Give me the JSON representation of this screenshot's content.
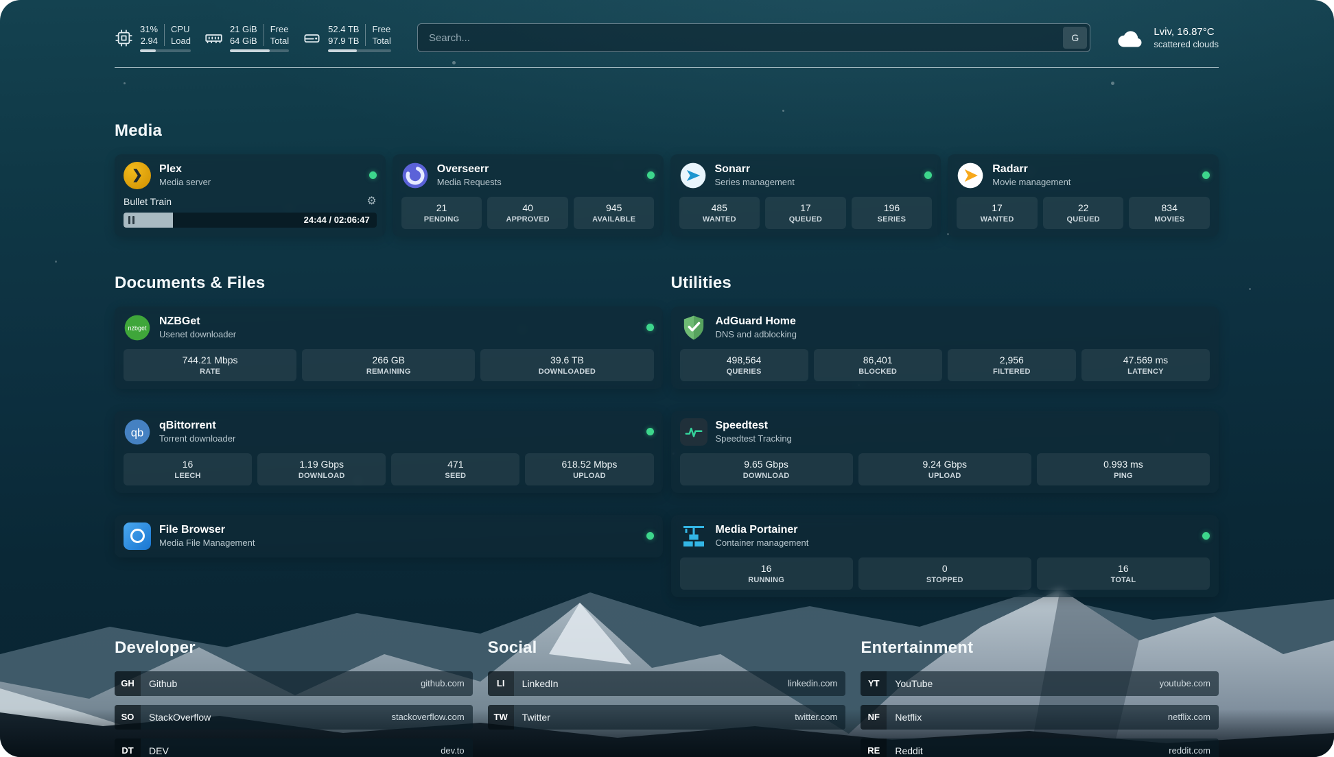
{
  "topbar": {
    "cpu": {
      "usage": "31%",
      "load": "2.94",
      "label_top": "CPU",
      "label_bottom": "Load",
      "bar_percent": 31
    },
    "memory": {
      "free": "21 GiB",
      "total": "64 GiB",
      "label_top": "Free",
      "label_bottom": "Total",
      "bar_percent": 67
    },
    "storage": {
      "free": "52.4 TB",
      "total": "97.9 TB",
      "label_top": "Free",
      "label_bottom": "Total",
      "bar_percent": 46
    },
    "search": {
      "placeholder": "Search...",
      "engine_button": "G"
    },
    "weather": {
      "location": "Lviv, 16.87°C",
      "condition": "scattered clouds"
    }
  },
  "sections": {
    "media": {
      "title": "Media",
      "plex": {
        "name": "Plex",
        "subtitle": "Media server",
        "now_playing": "Bullet Train",
        "elapsed": "24:44 / 02:06:47",
        "progress_percent": 19.5
      },
      "overseerr": {
        "name": "Overseerr",
        "subtitle": "Media Requests",
        "stats": [
          {
            "value": "21",
            "label": "PENDING"
          },
          {
            "value": "40",
            "label": "APPROVED"
          },
          {
            "value": "945",
            "label": "AVAILABLE"
          }
        ]
      },
      "sonarr": {
        "name": "Sonarr",
        "subtitle": "Series management",
        "stats": [
          {
            "value": "485",
            "label": "WANTED"
          },
          {
            "value": "17",
            "label": "QUEUED"
          },
          {
            "value": "196",
            "label": "SERIES"
          }
        ]
      },
      "radarr": {
        "name": "Radarr",
        "subtitle": "Movie management",
        "stats": [
          {
            "value": "17",
            "label": "WANTED"
          },
          {
            "value": "22",
            "label": "QUEUED"
          },
          {
            "value": "834",
            "label": "MOVIES"
          }
        ]
      }
    },
    "documents": {
      "title": "Documents & Files",
      "nzbget": {
        "name": "NZBGet",
        "subtitle": "Usenet downloader",
        "icon_text": "nzbget",
        "stats": [
          {
            "value": "744.21 Mbps",
            "label": "RATE"
          },
          {
            "value": "266 GB",
            "label": "REMAINING"
          },
          {
            "value": "39.6 TB",
            "label": "DOWNLOADED"
          }
        ]
      },
      "qbittorrent": {
        "name": "qBittorrent",
        "subtitle": "Torrent downloader",
        "icon_text": "qb",
        "stats": [
          {
            "value": "16",
            "label": "LEECH"
          },
          {
            "value": "1.19 Gbps",
            "label": "DOWNLOAD"
          },
          {
            "value": "471",
            "label": "SEED"
          },
          {
            "value": "618.52 Mbps",
            "label": "UPLOAD"
          }
        ]
      },
      "filebrowser": {
        "name": "File Browser",
        "subtitle": "Media File Management"
      }
    },
    "utilities": {
      "title": "Utilities",
      "adguard": {
        "name": "AdGuard Home",
        "subtitle": "DNS and adblocking",
        "stats": [
          {
            "value": "498,564",
            "label": "QUERIES"
          },
          {
            "value": "86,401",
            "label": "BLOCKED"
          },
          {
            "value": "2,956",
            "label": "FILTERED"
          },
          {
            "value": "47.569 ms",
            "label": "LATENCY"
          }
        ]
      },
      "speedtest": {
        "name": "Speedtest",
        "subtitle": "Speedtest Tracking",
        "stats": [
          {
            "value": "9.65 Gbps",
            "label": "DOWNLOAD"
          },
          {
            "value": "9.24 Gbps",
            "label": "UPLOAD"
          },
          {
            "value": "0.993 ms",
            "label": "PING"
          }
        ]
      },
      "portainer": {
        "name": "Media Portainer",
        "subtitle": "Container management",
        "stats": [
          {
            "value": "16",
            "label": "RUNNING"
          },
          {
            "value": "0",
            "label": "STOPPED"
          },
          {
            "value": "16",
            "label": "TOTAL"
          }
        ]
      }
    },
    "bookmarks": [
      {
        "title": "Developer",
        "items": [
          {
            "abbr": "GH",
            "name": "Github",
            "url": "github.com"
          },
          {
            "abbr": "SO",
            "name": "StackOverflow",
            "url": "stackoverflow.com"
          },
          {
            "abbr": "DT",
            "name": "DEV",
            "url": "dev.to"
          }
        ]
      },
      {
        "title": "Social",
        "items": [
          {
            "abbr": "LI",
            "name": "LinkedIn",
            "url": "linkedin.com"
          },
          {
            "abbr": "TW",
            "name": "Twitter",
            "url": "twitter.com"
          }
        ]
      },
      {
        "title": "Entertainment",
        "items": [
          {
            "abbr": "YT",
            "name": "YouTube",
            "url": "youtube.com"
          },
          {
            "abbr": "NF",
            "name": "Netflix",
            "url": "netflix.com"
          },
          {
            "abbr": "RE",
            "name": "Reddit",
            "url": "reddit.com"
          }
        ]
      }
    ]
  },
  "colors": {
    "status_online": "#3dd68c",
    "plex_brand": "#e5a00d",
    "adguard_green": "#69b46e",
    "portainer_blue": "#33b6e5",
    "background_teal": "#0d3040"
  }
}
